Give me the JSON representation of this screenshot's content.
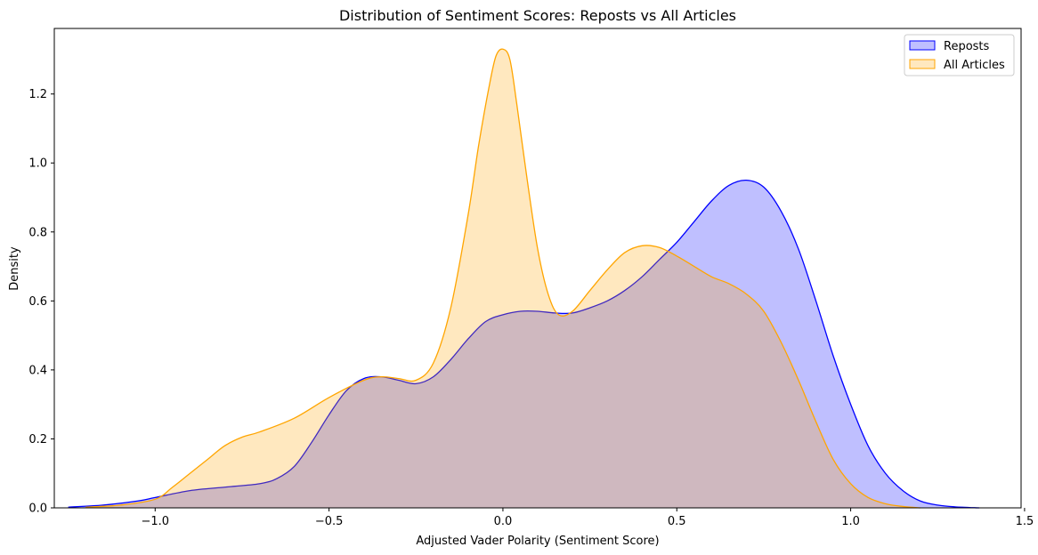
{
  "chart_data": {
    "type": "area",
    "title": "Distribution of Sentiment Scores: Reposts vs All Articles",
    "xlabel": "Adjusted Vader Polarity (Sentiment Score)",
    "ylabel": "Density",
    "xlim": [
      -1.29,
      1.49
    ],
    "ylim": [
      0,
      1.39
    ],
    "xticks": [
      -1.0,
      -0.5,
      0.0,
      0.5,
      1.0,
      1.5
    ],
    "xtick_labels": [
      "−1.0",
      "−0.5",
      "0.0",
      "0.5",
      "1.0",
      "1.5"
    ],
    "yticks": [
      0.0,
      0.2,
      0.4,
      0.6,
      0.8,
      1.0,
      1.2
    ],
    "ytick_labels": [
      "0.0",
      "0.2",
      "0.4",
      "0.6",
      "0.8",
      "1.0",
      "1.2"
    ],
    "legend": {
      "position": "top-right"
    },
    "series": [
      {
        "name": "Reposts",
        "color": "#0000ff",
        "fill": "#0000ff",
        "fill_opacity": 0.25,
        "x": [
          -1.25,
          -1.15,
          -1.05,
          -1.0,
          -0.9,
          -0.8,
          -0.7,
          -0.65,
          -0.6,
          -0.55,
          -0.5,
          -0.45,
          -0.4,
          -0.35,
          -0.3,
          -0.25,
          -0.2,
          -0.15,
          -0.1,
          -0.05,
          0.0,
          0.05,
          0.1,
          0.15,
          0.2,
          0.25,
          0.3,
          0.35,
          0.4,
          0.45,
          0.5,
          0.55,
          0.6,
          0.65,
          0.7,
          0.75,
          0.8,
          0.85,
          0.9,
          0.95,
          1.0,
          1.05,
          1.1,
          1.15,
          1.2,
          1.25,
          1.3,
          1.37
        ],
        "y": [
          0.002,
          0.008,
          0.02,
          0.03,
          0.05,
          0.06,
          0.07,
          0.085,
          0.12,
          0.19,
          0.27,
          0.34,
          0.375,
          0.38,
          0.37,
          0.36,
          0.38,
          0.43,
          0.49,
          0.54,
          0.56,
          0.57,
          0.57,
          0.565,
          0.565,
          0.58,
          0.6,
          0.63,
          0.67,
          0.72,
          0.77,
          0.83,
          0.89,
          0.935,
          0.95,
          0.93,
          0.86,
          0.75,
          0.6,
          0.44,
          0.3,
          0.18,
          0.1,
          0.05,
          0.02,
          0.008,
          0.003,
          0.0
        ]
      },
      {
        "name": "All Articles",
        "color": "#ffa500",
        "fill": "#ffa500",
        "fill_opacity": 0.25,
        "x": [
          -1.2,
          -1.1,
          -1.0,
          -0.95,
          -0.9,
          -0.85,
          -0.8,
          -0.75,
          -0.7,
          -0.6,
          -0.5,
          -0.4,
          -0.35,
          -0.3,
          -0.25,
          -0.2,
          -0.15,
          -0.1,
          -0.07,
          -0.04,
          -0.02,
          0.0,
          0.02,
          0.04,
          0.07,
          0.1,
          0.13,
          0.16,
          0.2,
          0.25,
          0.3,
          0.35,
          0.4,
          0.45,
          0.5,
          0.55,
          0.6,
          0.65,
          0.7,
          0.75,
          0.8,
          0.85,
          0.9,
          0.95,
          1.0,
          1.05,
          1.1,
          1.15,
          1.2
        ],
        "y": [
          0.002,
          0.008,
          0.025,
          0.06,
          0.1,
          0.14,
          0.18,
          0.205,
          0.22,
          0.26,
          0.32,
          0.37,
          0.38,
          0.375,
          0.37,
          0.42,
          0.58,
          0.85,
          1.05,
          1.22,
          1.31,
          1.33,
          1.3,
          1.17,
          0.95,
          0.75,
          0.62,
          0.56,
          0.57,
          0.63,
          0.69,
          0.74,
          0.76,
          0.755,
          0.73,
          0.7,
          0.67,
          0.65,
          0.62,
          0.57,
          0.48,
          0.37,
          0.25,
          0.14,
          0.07,
          0.03,
          0.012,
          0.004,
          0.0
        ]
      }
    ]
  }
}
